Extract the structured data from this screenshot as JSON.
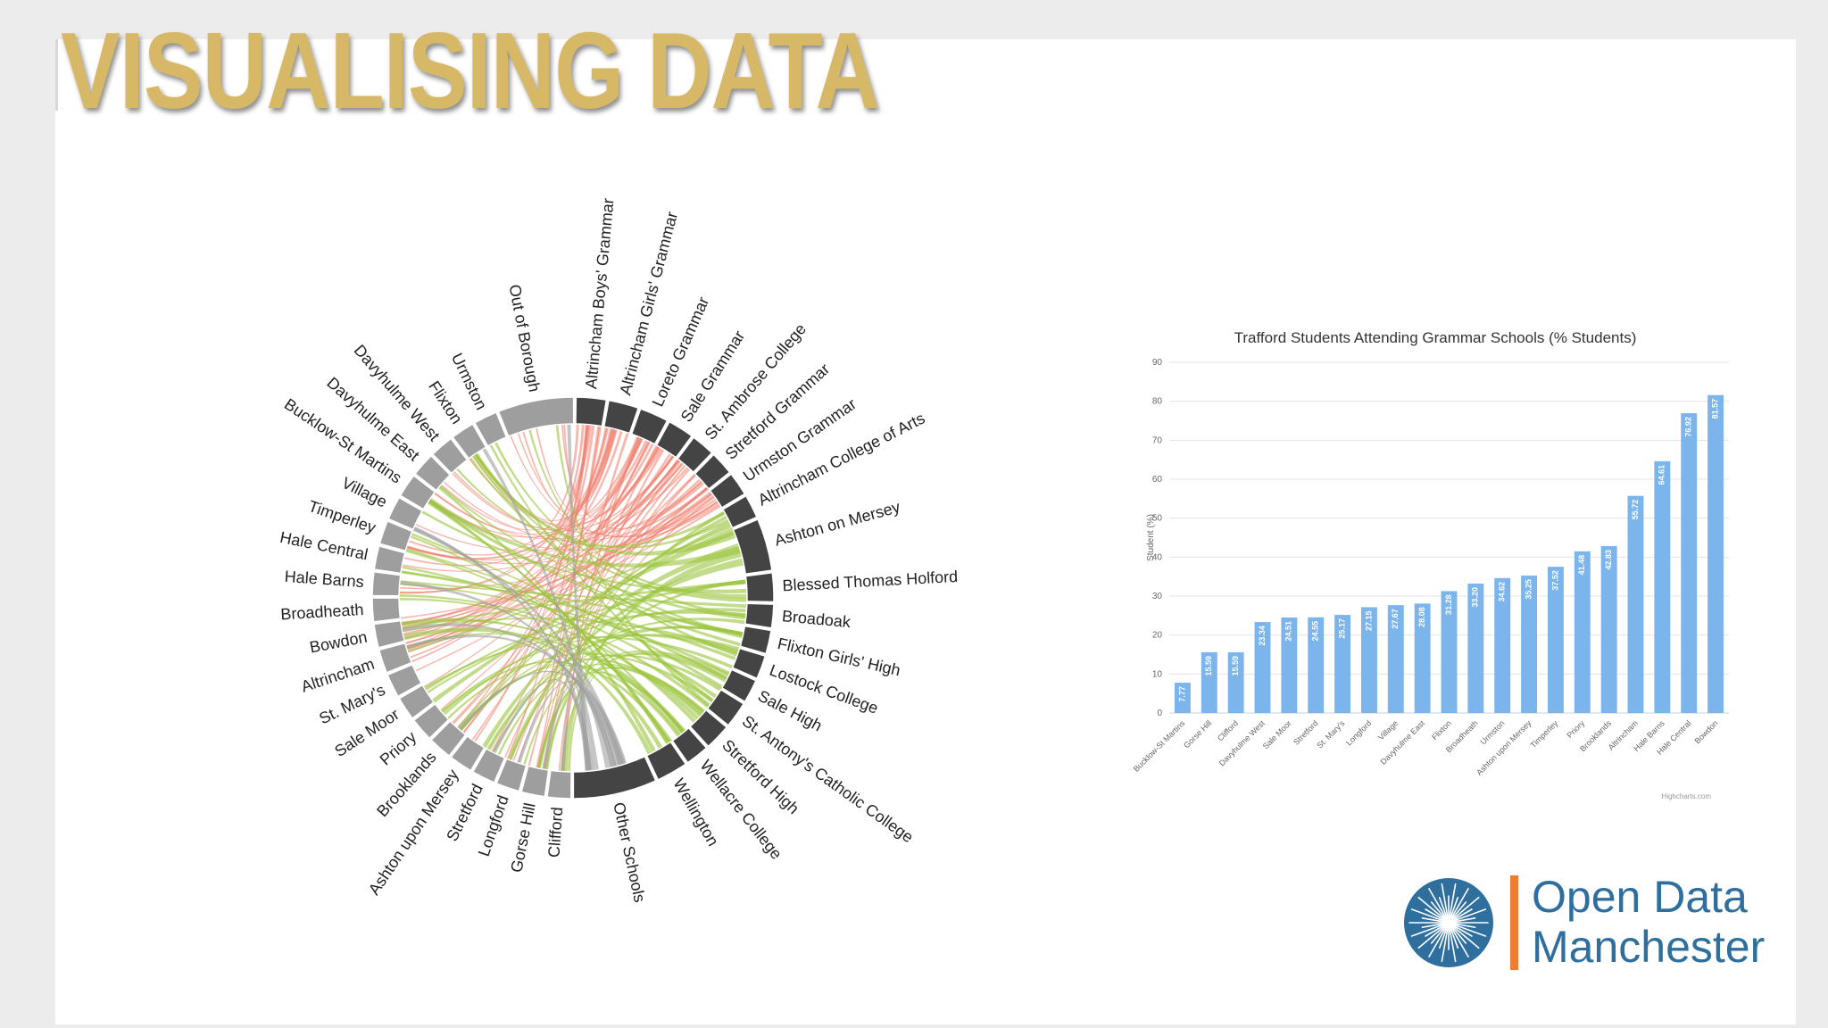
{
  "slide": {
    "title": "VISUALISING DATA"
  },
  "logo": {
    "line1": "Open Data",
    "line2": "Manchester",
    "icon": "starburst-icon"
  },
  "colors": {
    "title": "#d6b866",
    "bar": "#7cb5ec",
    "chord_red": "#f08070",
    "chord_green": "#9bc53d",
    "chord_grey": "#a0a0a0",
    "arc_dark": "#444444",
    "arc_light": "#9e9e9e",
    "logo_blue": "#2e6f9e",
    "logo_orange": "#ee7d31"
  },
  "chart_data": [
    {
      "type": "chord",
      "groups": [
        {
          "name": "Altrincham Boys' Grammar",
          "kind": "school"
        },
        {
          "name": "Altrincham Girls' Grammar",
          "kind": "school"
        },
        {
          "name": "Loreto Grammar",
          "kind": "school"
        },
        {
          "name": "Sale Grammar",
          "kind": "school"
        },
        {
          "name": "St. Ambrose College",
          "kind": "school"
        },
        {
          "name": "Stretford Grammar",
          "kind": "school"
        },
        {
          "name": "Urmston Grammar",
          "kind": "school"
        },
        {
          "name": "Altrincham College of Arts",
          "kind": "school"
        },
        {
          "name": "Ashton on Mersey",
          "kind": "school"
        },
        {
          "name": "Blessed Thomas Holford",
          "kind": "school"
        },
        {
          "name": "Broadoak",
          "kind": "school"
        },
        {
          "name": "Flixton Girls' High",
          "kind": "school"
        },
        {
          "name": "Lostock College",
          "kind": "school"
        },
        {
          "name": "Sale High",
          "kind": "school"
        },
        {
          "name": "St. Antony's Catholic College",
          "kind": "school"
        },
        {
          "name": "Stretford High",
          "kind": "school"
        },
        {
          "name": "Wellacre College",
          "kind": "school"
        },
        {
          "name": "Wellington",
          "kind": "school"
        },
        {
          "name": "Other Schools",
          "kind": "school"
        },
        {
          "name": "Clifford",
          "kind": "ward"
        },
        {
          "name": "Gorse Hill",
          "kind": "ward"
        },
        {
          "name": "Longford",
          "kind": "ward"
        },
        {
          "name": "Stretford",
          "kind": "ward"
        },
        {
          "name": "Ashton upon Mersey",
          "kind": "ward"
        },
        {
          "name": "Brooklands",
          "kind": "ward"
        },
        {
          "name": "Priory",
          "kind": "ward"
        },
        {
          "name": "Sale Moor",
          "kind": "ward"
        },
        {
          "name": "St. Mary's",
          "kind": "ward"
        },
        {
          "name": "Altrincham",
          "kind": "ward"
        },
        {
          "name": "Bowdon",
          "kind": "ward"
        },
        {
          "name": "Broadheath",
          "kind": "ward"
        },
        {
          "name": "Hale Barns",
          "kind": "ward"
        },
        {
          "name": "Hale Central",
          "kind": "ward"
        },
        {
          "name": "Timperley",
          "kind": "ward"
        },
        {
          "name": "Village",
          "kind": "ward"
        },
        {
          "name": "Bucklow-St Martins",
          "kind": "ward"
        },
        {
          "name": "Davyhulme East",
          "kind": "ward"
        },
        {
          "name": "Davyhulme West",
          "kind": "ward"
        },
        {
          "name": "Flixton",
          "kind": "ward"
        },
        {
          "name": "Urmston",
          "kind": "ward"
        },
        {
          "name": "Out of Borough",
          "kind": "ward"
        }
      ]
    },
    {
      "type": "bar",
      "title": "Trafford Students Attending Grammar Schools (% Students)",
      "ylabel": "Student (%)",
      "xlabel": "",
      "ylim": [
        0,
        90
      ],
      "yticks": [
        0,
        10,
        20,
        30,
        40,
        50,
        60,
        70,
        80,
        90
      ],
      "grid": true,
      "credit": "Highcharts.com",
      "categories": [
        "Bucklow-St Martins",
        "Gorse Hill",
        "Clifford",
        "Davyhulme West",
        "Sale Moor",
        "Stretford",
        "St. Mary's",
        "Longford",
        "Village",
        "Davyhulme East",
        "Flixton",
        "Broadheath",
        "Urmston",
        "Ashton upon Mersey",
        "Timperley",
        "Priory",
        "Brooklands",
        "Altrincham",
        "Hale Barns",
        "Hale Central",
        "Bowdon"
      ],
      "values": [
        7.77,
        15.59,
        15.59,
        23.34,
        24.51,
        24.55,
        25.17,
        27.15,
        27.67,
        28.08,
        31.28,
        33.2,
        34.62,
        35.25,
        37.52,
        41.48,
        42.83,
        55.72,
        64.61,
        76.92,
        81.57
      ],
      "value_labels": [
        "7.77",
        "15.59",
        "15.59",
        "23.34",
        "24.51",
        "24.55",
        "25.17",
        "27.15",
        "27.67",
        "28.08",
        "31.28",
        "33.20",
        "34.62",
        "35.25",
        "37.52",
        "41.48",
        "42.83",
        "55.72",
        "64.61",
        "76.92",
        "81.57"
      ]
    }
  ]
}
